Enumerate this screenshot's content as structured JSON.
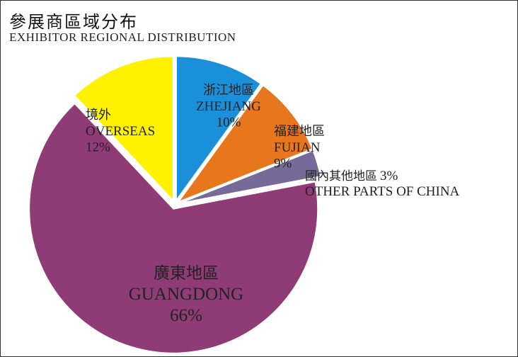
{
  "chart_data": {
    "type": "pie",
    "title": "參展商區域分布",
    "subtitle": "EXHIBITOR REGIONAL DISTRIBUTION",
    "slices": [
      {
        "label_cn": "浙江地區",
        "label_en": "ZHEJIANG",
        "value": 10,
        "pct": "10%",
        "color": "#1b90da"
      },
      {
        "label_cn": "福建地區",
        "label_en": "FUJIAN",
        "value": 9,
        "pct": "9%",
        "color": "#e8761c"
      },
      {
        "label_cn": "國內其他地區",
        "label_en": "OTHER PARTS OF CHINA",
        "value": 3,
        "pct": "3%",
        "color": "#766a98"
      },
      {
        "label_cn": "廣東地區",
        "label_en": "GUANGDONG",
        "value": 66,
        "pct": "66%",
        "color": "#8f3b75"
      },
      {
        "label_cn": "境外",
        "label_en": "OVERSEAS",
        "value": 12,
        "pct": "12%",
        "color": "#fff200"
      }
    ],
    "start_angle": "12 o'clock",
    "direction": "clockwise",
    "exploded": true,
    "legend": "none"
  }
}
